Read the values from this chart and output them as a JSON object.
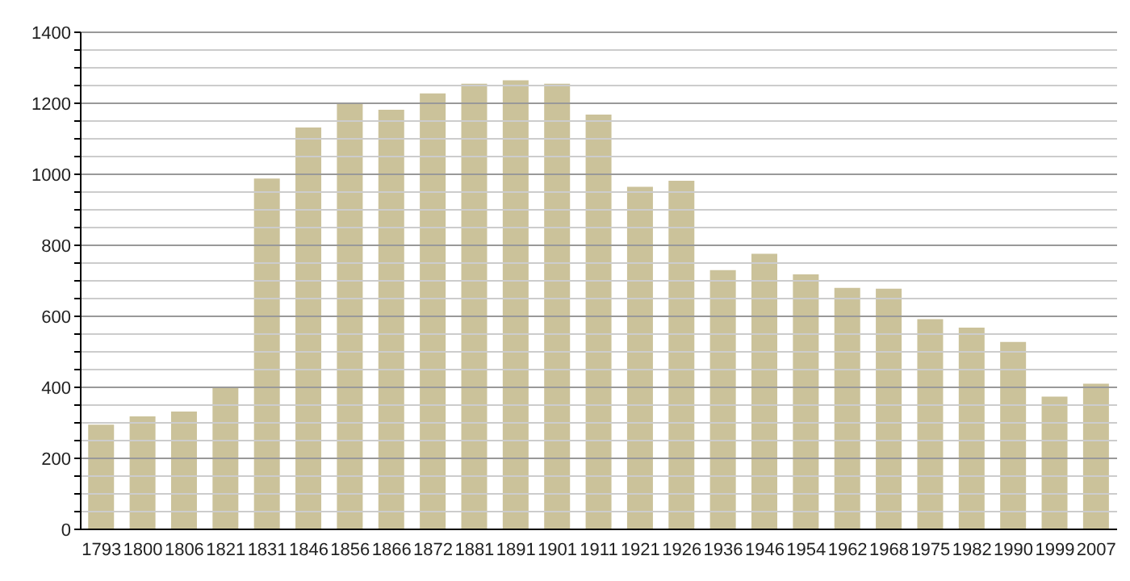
{
  "chart_data": {
    "type": "bar",
    "categories": [
      "1793",
      "1800",
      "1806",
      "1821",
      "1831",
      "1846",
      "1856",
      "1866",
      "1872",
      "1881",
      "1891",
      "1901",
      "1911",
      "1921",
      "1926",
      "1936",
      "1946",
      "1954",
      "1962",
      "1968",
      "1975",
      "1982",
      "1990",
      "1999",
      "2007"
    ],
    "values": [
      295,
      318,
      332,
      398,
      988,
      1132,
      1198,
      1182,
      1228,
      1255,
      1265,
      1255,
      1168,
      965,
      982,
      730,
      776,
      718,
      680,
      678,
      592,
      568,
      528,
      374,
      410
    ],
    "color": "#cbc29a",
    "ylim": [
      0,
      1400
    ],
    "yticks": [
      0,
      {
        "value": 50,
        "label": null
      },
      {
        "value": 100,
        "label": null
      },
      {
        "value": 150,
        "label": null
      },
      200,
      {
        "value": 250,
        "label": null
      },
      {
        "value": 300,
        "label": null
      },
      {
        "value": 350,
        "label": null
      },
      400,
      {
        "value": 450,
        "label": null
      },
      {
        "value": 500,
        "label": null
      },
      {
        "value": 550,
        "label": null
      },
      600,
      {
        "value": 650,
        "label": null
      },
      {
        "value": 700,
        "label": null
      },
      {
        "value": 750,
        "label": null
      },
      800,
      {
        "value": 850,
        "label": null
      },
      {
        "value": 900,
        "label": null
      },
      {
        "value": 950,
        "label": null
      },
      1000,
      {
        "value": 1050,
        "label": null
      },
      {
        "value": 1100,
        "label": null
      },
      {
        "value": 1150,
        "label": null
      },
      1200,
      {
        "value": 1250,
        "label": null
      },
      {
        "value": 1300,
        "label": null
      },
      {
        "value": 1350,
        "label": null
      },
      1400
    ],
    "grid": "y"
  }
}
